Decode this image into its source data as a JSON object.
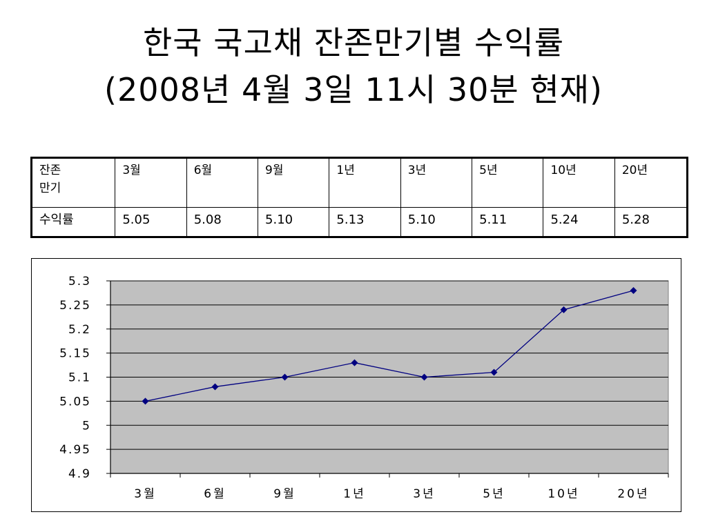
{
  "title": {
    "line1": "한국 국고채 잔존만기별 수익률",
    "line2": "(2008년 4월 3일 11시 30분 현재)"
  },
  "table": {
    "row_header_1": [
      "잔존",
      "만기"
    ],
    "row_header_2": "수익률",
    "maturities": [
      "3월",
      "6월",
      "9월",
      "1년",
      "3년",
      "5년",
      "10년",
      "20년"
    ],
    "yields": [
      "5.05",
      "5.08",
      "5.10",
      "5.13",
      "5.10",
      "5.11",
      "5.24",
      "5.28"
    ]
  },
  "chart_data": {
    "type": "line",
    "categories": [
      "3월",
      "6월",
      "9월",
      "1년",
      "3년",
      "5년",
      "10년",
      "20년"
    ],
    "series": [
      {
        "values": [
          5.05,
          5.08,
          5.1,
          5.13,
          5.1,
          5.11,
          5.24,
          5.28
        ],
        "color": "#000080"
      }
    ],
    "ylim": [
      4.9,
      5.3
    ],
    "yticks": [
      "5.3",
      "5.25",
      "5.2",
      "5.15",
      "5.1",
      "5.05",
      "5",
      "4.95",
      "4.9"
    ],
    "grid": true,
    "plot_background": "#c0c0c0",
    "legend": "none",
    "title": "",
    "xlabel": "",
    "ylabel": ""
  }
}
